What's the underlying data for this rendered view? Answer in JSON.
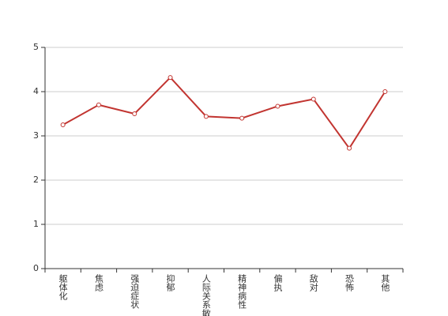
{
  "chart_data": {
    "type": "line",
    "categories": [
      "躯体化",
      "焦虑",
      "强迫症状",
      "抑郁",
      "人际关系敏感",
      "精神病性",
      "偏执",
      "敌对",
      "恐怖",
      "其他"
    ],
    "series": [
      {
        "color": "#c23531",
        "values": [
          3.25,
          3.7,
          3.5,
          4.32,
          3.44,
          3.4,
          3.67,
          3.83,
          2.72,
          4.0
        ]
      }
    ],
    "ylim": [
      0,
      5
    ],
    "yticks": [
      0,
      1,
      2,
      3,
      4,
      5
    ],
    "grid": true
  }
}
